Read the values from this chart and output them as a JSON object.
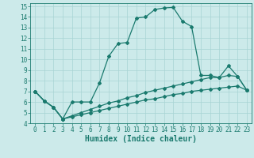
{
  "xlabel": "Humidex (Indice chaleur)",
  "bg_color": "#cceaea",
  "line_color": "#1a7a6e",
  "grid_color": "#a8d4d4",
  "xlim": [
    -0.5,
    23.5
  ],
  "ylim": [
    4,
    15.3
  ],
  "xticks": [
    0,
    1,
    2,
    3,
    4,
    5,
    6,
    7,
    8,
    9,
    10,
    11,
    12,
    13,
    14,
    15,
    16,
    17,
    18,
    19,
    20,
    21,
    22,
    23
  ],
  "yticks": [
    4,
    5,
    6,
    7,
    8,
    9,
    10,
    11,
    12,
    13,
    14,
    15
  ],
  "line1_x": [
    0,
    1,
    2,
    3,
    4,
    5,
    6,
    7,
    8,
    9,
    10,
    11,
    12,
    13,
    14,
    15,
    16,
    17,
    18,
    19,
    20,
    21,
    22,
    23
  ],
  "line1_y": [
    7.0,
    6.1,
    5.5,
    4.4,
    6.0,
    6.0,
    6.0,
    7.8,
    10.3,
    11.5,
    11.6,
    13.9,
    14.0,
    14.7,
    14.85,
    14.9,
    13.6,
    13.1,
    8.5,
    8.5,
    8.3,
    9.4,
    8.4,
    7.1
  ],
  "line2_x": [
    0,
    1,
    2,
    3,
    4,
    5,
    6,
    7,
    8,
    9,
    10,
    11,
    12,
    13,
    14,
    15,
    16,
    17,
    18,
    19,
    20,
    21,
    22,
    23
  ],
  "line2_y": [
    7.0,
    6.1,
    5.5,
    4.4,
    4.7,
    5.0,
    5.3,
    5.6,
    5.9,
    6.1,
    6.4,
    6.6,
    6.9,
    7.1,
    7.3,
    7.5,
    7.7,
    7.9,
    8.1,
    8.3,
    8.3,
    8.5,
    8.4,
    7.1
  ],
  "line3_x": [
    0,
    1,
    2,
    3,
    4,
    5,
    6,
    7,
    8,
    9,
    10,
    11,
    12,
    13,
    14,
    15,
    16,
    17,
    18,
    19,
    20,
    21,
    22,
    23
  ],
  "line3_y": [
    7.0,
    6.1,
    5.5,
    4.4,
    4.6,
    4.8,
    5.0,
    5.2,
    5.4,
    5.6,
    5.8,
    6.0,
    6.2,
    6.3,
    6.5,
    6.7,
    6.8,
    7.0,
    7.1,
    7.2,
    7.3,
    7.4,
    7.5,
    7.1
  ],
  "xlabel_fontsize": 7,
  "tick_fontsize": 5.5
}
